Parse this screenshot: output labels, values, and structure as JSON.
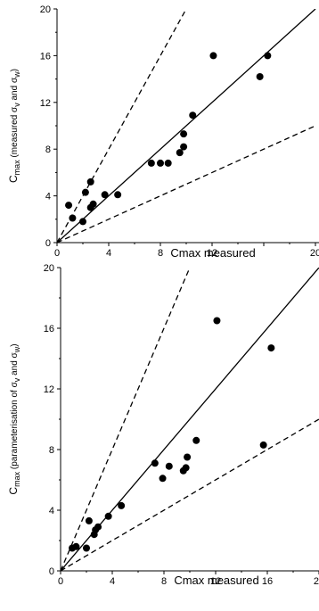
{
  "chart_data": [
    {
      "type": "scatter",
      "xlabel": "Cmax measured",
      "ylabel": {
        "main": "C",
        "sub": "max",
        "text": " (measured σ",
        "s1": "v",
        "mid": " and σ",
        "s2": "w",
        "end": ")"
      },
      "xlim": [
        0,
        20
      ],
      "ylim": [
        0,
        20
      ],
      "xticks": [
        "0",
        "4",
        "8",
        "12",
        "20"
      ],
      "yticks": [
        "0",
        "4",
        "8",
        "12",
        "16",
        "20"
      ],
      "reference_lines": [
        {
          "style": "solid",
          "slope": 1
        },
        {
          "style": "dashed",
          "slope": 2
        },
        {
          "style": "dashed",
          "slope": 0.5
        }
      ],
      "points": [
        {
          "x": 0.9,
          "y": 3.2
        },
        {
          "x": 1.2,
          "y": 2.1
        },
        {
          "x": 2.0,
          "y": 1.8
        },
        {
          "x": 2.2,
          "y": 4.3
        },
        {
          "x": 2.6,
          "y": 5.2
        },
        {
          "x": 2.6,
          "y": 3.0
        },
        {
          "x": 2.8,
          "y": 3.3
        },
        {
          "x": 3.7,
          "y": 4.1
        },
        {
          "x": 4.7,
          "y": 4.1
        },
        {
          "x": 7.3,
          "y": 6.8
        },
        {
          "x": 8.0,
          "y": 6.8
        },
        {
          "x": 8.6,
          "y": 6.8
        },
        {
          "x": 9.5,
          "y": 7.7
        },
        {
          "x": 9.8,
          "y": 8.2
        },
        {
          "x": 9.8,
          "y": 9.3
        },
        {
          "x": 10.5,
          "y": 10.9
        },
        {
          "x": 12.1,
          "y": 16.0
        },
        {
          "x": 15.7,
          "y": 14.2
        },
        {
          "x": 16.3,
          "y": 16.0
        }
      ]
    },
    {
      "type": "scatter",
      "xlabel": "Cmax measured",
      "ylabel": {
        "main": "C",
        "sub": "max",
        "text": " (parameterisation of  σ",
        "s1": "v",
        "mid": " and  σ",
        "s2": "w",
        "end": ")"
      },
      "xlim": [
        0,
        20
      ],
      "ylim": [
        0,
        20
      ],
      "xticks": [
        "0",
        "4",
        "8",
        "12",
        "16",
        "20"
      ],
      "yticks": [
        "0",
        "4",
        "8",
        "12",
        "16",
        "20"
      ],
      "reference_lines": [
        {
          "style": "solid",
          "slope": 1
        },
        {
          "style": "dashed",
          "slope": 2
        },
        {
          "style": "dashed",
          "slope": 0.5
        }
      ],
      "points": [
        {
          "x": 0.9,
          "y": 1.5
        },
        {
          "x": 1.2,
          "y": 1.6
        },
        {
          "x": 2.0,
          "y": 1.5
        },
        {
          "x": 2.2,
          "y": 3.3
        },
        {
          "x": 2.6,
          "y": 2.4
        },
        {
          "x": 2.7,
          "y": 2.7
        },
        {
          "x": 2.9,
          "y": 2.9
        },
        {
          "x": 3.7,
          "y": 3.6
        },
        {
          "x": 4.7,
          "y": 4.3
        },
        {
          "x": 7.3,
          "y": 7.1
        },
        {
          "x": 7.9,
          "y": 6.1
        },
        {
          "x": 8.4,
          "y": 6.9
        },
        {
          "x": 9.5,
          "y": 6.6
        },
        {
          "x": 9.7,
          "y": 6.8
        },
        {
          "x": 9.8,
          "y": 7.5
        },
        {
          "x": 10.5,
          "y": 8.6
        },
        {
          "x": 12.1,
          "y": 16.5
        },
        {
          "x": 15.7,
          "y": 8.3
        },
        {
          "x": 16.3,
          "y": 14.7
        }
      ]
    }
  ]
}
